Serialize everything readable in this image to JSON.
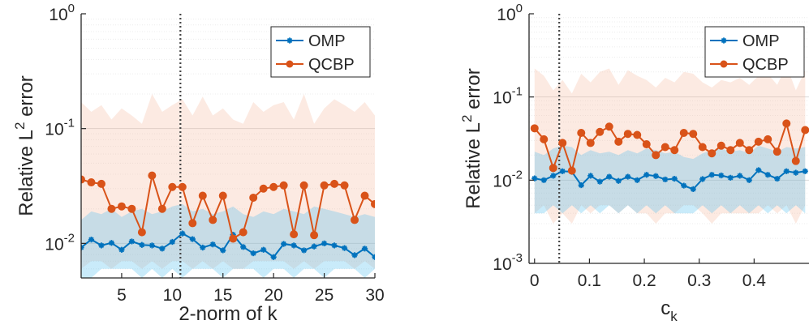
{
  "chart_data": [
    {
      "type": "line",
      "xlabel": "2-norm of k",
      "ylabel_main": "Relative L",
      "ylabel_sup": "2",
      "ylabel_tail": " error",
      "yscale": "log",
      "xlim": [
        1,
        30
      ],
      "ylim": [
        0.005,
        1
      ],
      "xticks": [
        5,
        10,
        15,
        20,
        25,
        30
      ],
      "xtick_labels": [
        "5",
        "10",
        "15",
        "20",
        "25",
        "30"
      ],
      "yticks": [
        {
          "value": 0.01,
          "base": "10",
          "exp": "-2"
        },
        {
          "value": 0.1,
          "base": "10",
          "exp": "-1"
        },
        {
          "value": 1,
          "base": "10",
          "exp": "0"
        }
      ],
      "grid": "minor horizontal",
      "legend_position": "top-right",
      "vline_x": 10.8,
      "x": [
        1,
        2,
        3,
        4,
        5,
        6,
        7,
        8,
        9,
        10,
        11,
        12,
        13,
        14,
        15,
        16,
        17,
        18,
        19,
        20,
        21,
        22,
        23,
        24,
        25,
        26,
        27,
        28,
        29,
        30
      ],
      "series": [
        {
          "name": "OMP",
          "color": "#0072bd",
          "band_color": "#4dbeee",
          "marker": "star",
          "values": [
            0.0092,
            0.0108,
            0.0096,
            0.0101,
            0.0088,
            0.0104,
            0.0097,
            0.0096,
            0.009,
            0.0103,
            0.0122,
            0.0109,
            0.0092,
            0.0098,
            0.0087,
            0.0119,
            0.0093,
            0.0082,
            0.0088,
            0.0076,
            0.0099,
            0.0096,
            0.0087,
            0.0094,
            0.01,
            0.0096,
            0.0091,
            0.0079,
            0.009,
            0.0076
          ],
          "band_low": [
            0.005,
            0.005,
            0.006,
            0.006,
            0.006,
            0.006,
            0.005,
            0.006,
            0.005,
            0.006,
            0.005,
            0.006,
            0.006,
            0.006,
            0.005,
            0.006,
            0.006,
            0.006,
            0.005,
            0.006,
            0.006,
            0.005,
            0.006,
            0.006,
            0.005,
            0.006,
            0.006,
            0.006,
            0.005,
            0.006
          ],
          "band_high": [
            0.016,
            0.019,
            0.018,
            0.02,
            0.017,
            0.019,
            0.02,
            0.018,
            0.019,
            0.021,
            0.022,
            0.019,
            0.02,
            0.018,
            0.019,
            0.021,
            0.018,
            0.017,
            0.019,
            0.018,
            0.02,
            0.019,
            0.018,
            0.021,
            0.02,
            0.019,
            0.018,
            0.017,
            0.018,
            0.017
          ]
        },
        {
          "name": "QCBP",
          "color": "#d95319",
          "band_color": "#f4b9a0",
          "marker": "circle",
          "values": [
            0.036,
            0.034,
            0.033,
            0.02,
            0.021,
            0.02,
            0.0125,
            0.039,
            0.02,
            0.031,
            0.031,
            0.015,
            0.026,
            0.016,
            0.026,
            0.011,
            0.0125,
            0.025,
            0.03,
            0.031,
            0.032,
            0.012,
            0.032,
            0.0118,
            0.032,
            0.033,
            0.032,
            0.016,
            0.026,
            0.022
          ],
          "band_low": [
            0.006,
            0.007,
            0.007,
            0.006,
            0.007,
            0.007,
            0.006,
            0.007,
            0.006,
            0.007,
            0.007,
            0.006,
            0.007,
            0.006,
            0.007,
            0.006,
            0.006,
            0.007,
            0.007,
            0.007,
            0.007,
            0.006,
            0.007,
            0.006,
            0.007,
            0.007,
            0.007,
            0.006,
            0.007,
            0.006
          ],
          "band_high": [
            0.17,
            0.14,
            0.16,
            0.12,
            0.15,
            0.13,
            0.11,
            0.2,
            0.14,
            0.16,
            0.18,
            0.13,
            0.19,
            0.13,
            0.15,
            0.12,
            0.11,
            0.17,
            0.14,
            0.16,
            0.17,
            0.12,
            0.2,
            0.11,
            0.15,
            0.18,
            0.16,
            0.14,
            0.17,
            0.13
          ]
        }
      ]
    },
    {
      "type": "line",
      "xlabel_base": "c",
      "xlabel_sub": "k",
      "ylabel_main": "Relative L",
      "ylabel_sup": "2",
      "ylabel_tail": " error",
      "yscale": "log",
      "xlim": [
        -0.01,
        0.5
      ],
      "ylim": [
        0.001,
        1
      ],
      "xticks": [
        0,
        0.1,
        0.2,
        0.3,
        0.4
      ],
      "xtick_labels": [
        "0",
        "0.1",
        "0.2",
        "0.3",
        "0.4"
      ],
      "yticks": [
        {
          "value": 0.001,
          "base": "10",
          "exp": "-3"
        },
        {
          "value": 0.01,
          "base": "10",
          "exp": "-2"
        },
        {
          "value": 0.1,
          "base": "10",
          "exp": "-1"
        },
        {
          "value": 1,
          "base": "10",
          "exp": "0"
        }
      ],
      "grid": "minor horizontal",
      "legend_position": "top-right",
      "vline_x": 0.045,
      "x": [
        0,
        0.017,
        0.034,
        0.051,
        0.068,
        0.085,
        0.102,
        0.119,
        0.136,
        0.153,
        0.17,
        0.187,
        0.204,
        0.221,
        0.238,
        0.255,
        0.272,
        0.289,
        0.306,
        0.323,
        0.34,
        0.357,
        0.374,
        0.391,
        0.408,
        0.425,
        0.442,
        0.459,
        0.476,
        0.493
      ],
      "series": [
        {
          "name": "OMP",
          "color": "#0072bd",
          "band_color": "#4dbeee",
          "marker": "star",
          "values": [
            0.0105,
            0.01,
            0.0113,
            0.0128,
            0.0126,
            0.0087,
            0.0113,
            0.0096,
            0.011,
            0.0098,
            0.011,
            0.01,
            0.0116,
            0.0112,
            0.0102,
            0.0104,
            0.0086,
            0.0078,
            0.0103,
            0.0116,
            0.0114,
            0.0107,
            0.0113,
            0.01,
            0.0132,
            0.0116,
            0.0104,
            0.0128,
            0.0123,
            0.0128
          ],
          "band_low": [
            0.004,
            0.004,
            0.005,
            0.004,
            0.005,
            0.004,
            0.005,
            0.004,
            0.005,
            0.004,
            0.005,
            0.004,
            0.005,
            0.004,
            0.005,
            0.004,
            0.004,
            0.004,
            0.005,
            0.004,
            0.005,
            0.004,
            0.005,
            0.004,
            0.005,
            0.004,
            0.005,
            0.004,
            0.005,
            0.004
          ],
          "band_high": [
            0.022,
            0.02,
            0.024,
            0.026,
            0.025,
            0.02,
            0.023,
            0.021,
            0.022,
            0.02,
            0.023,
            0.021,
            0.024,
            0.023,
            0.021,
            0.022,
            0.019,
            0.018,
            0.021,
            0.023,
            0.024,
            0.022,
            0.023,
            0.021,
            0.026,
            0.024,
            0.022,
            0.025,
            0.024,
            0.025
          ]
        },
        {
          "name": "QCBP",
          "color": "#d95319",
          "band_color": "#f4b9a0",
          "marker": "circle",
          "values": [
            0.042,
            0.031,
            0.014,
            0.028,
            0.013,
            0.037,
            0.028,
            0.038,
            0.044,
            0.029,
            0.036,
            0.035,
            0.027,
            0.02,
            0.025,
            0.023,
            0.037,
            0.036,
            0.025,
            0.021,
            0.026,
            0.023,
            0.028,
            0.023,
            0.029,
            0.031,
            0.022,
            0.048,
            0.017,
            0.04
          ],
          "band_low": [
            0.004,
            0.005,
            0.003,
            0.004,
            0.003,
            0.005,
            0.004,
            0.005,
            0.005,
            0.004,
            0.005,
            0.004,
            0.004,
            0.003,
            0.004,
            0.004,
            0.005,
            0.005,
            0.004,
            0.003,
            0.004,
            0.004,
            0.004,
            0.004,
            0.004,
            0.005,
            0.004,
            0.005,
            0.003,
            0.005
          ],
          "band_high": [
            0.22,
            0.18,
            0.12,
            0.16,
            0.11,
            0.19,
            0.15,
            0.2,
            0.22,
            0.14,
            0.21,
            0.18,
            0.16,
            0.13,
            0.17,
            0.15,
            0.2,
            0.19,
            0.15,
            0.13,
            0.16,
            0.15,
            0.17,
            0.14,
            0.18,
            0.19,
            0.14,
            0.24,
            0.12,
            0.21
          ]
        }
      ]
    }
  ]
}
